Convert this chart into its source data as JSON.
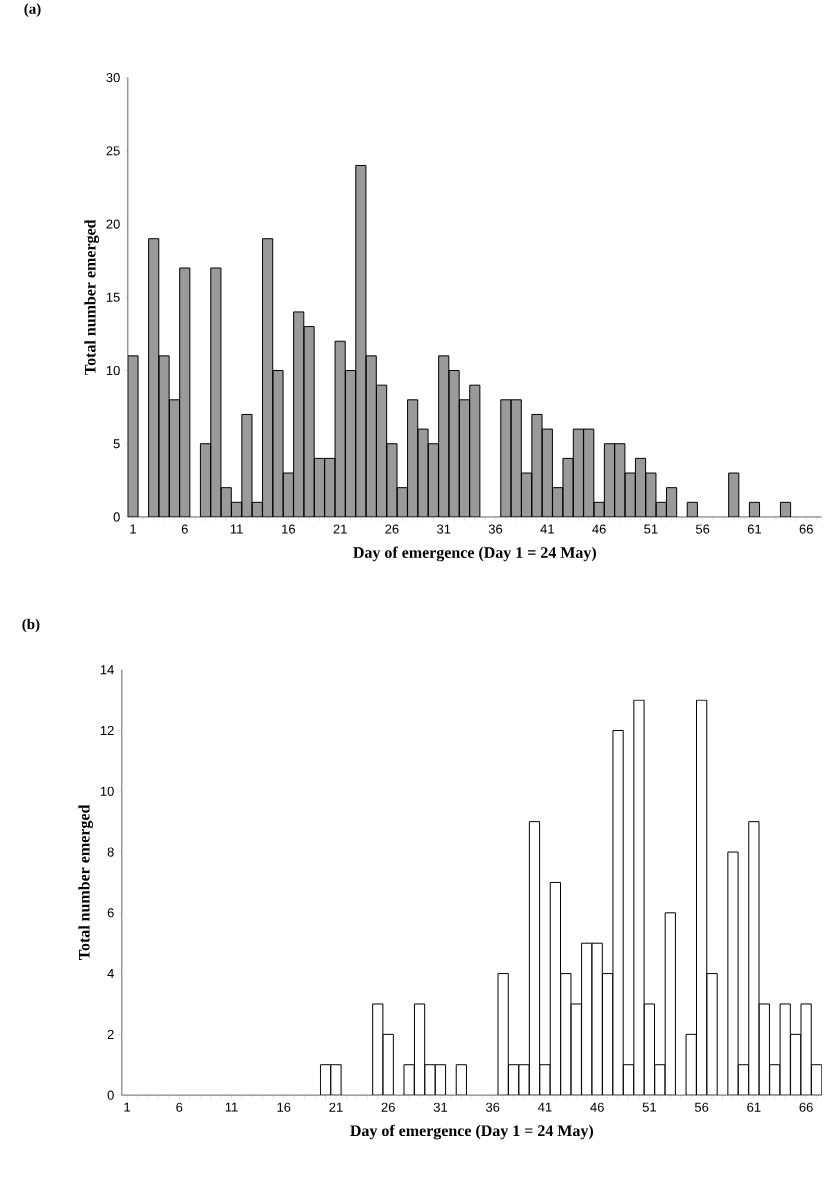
{
  "chart_data": [
    {
      "type": "bar",
      "title": "(a)",
      "xlabel": "Day of emergence (Day 1 = 24 May)",
      "ylabel": "Total number emerged",
      "color": "#9a9a9a",
      "categories": [
        "1",
        null,
        null,
        null,
        null,
        "6",
        null,
        null,
        null,
        null,
        "11",
        null,
        null,
        null,
        null,
        "16",
        null,
        null,
        null,
        null,
        "21",
        null,
        null,
        null,
        null,
        "26",
        null,
        null,
        null,
        null,
        "31",
        null,
        null,
        null,
        null,
        "36",
        null,
        null,
        null,
        null,
        "41",
        null,
        null,
        null,
        null,
        "46",
        null,
        null,
        null,
        null,
        "51",
        null,
        null,
        null,
        null,
        "56",
        null,
        null,
        null,
        null,
        "61",
        null,
        null,
        null,
        null,
        "66",
        null
      ],
      "values": [
        11,
        0,
        19,
        11,
        8,
        17,
        0,
        5,
        17,
        2,
        1,
        7,
        1,
        19,
        10,
        3,
        14,
        13,
        4,
        4,
        12,
        10,
        24,
        11,
        9,
        5,
        2,
        8,
        6,
        5,
        11,
        10,
        8,
        9,
        0,
        0,
        8,
        8,
        3,
        7,
        6,
        2,
        4,
        6,
        6,
        1,
        5,
        5,
        3,
        4,
        3,
        1,
        2,
        0,
        1,
        0,
        0,
        0,
        3,
        0,
        1,
        0,
        0,
        1,
        0,
        0,
        0
      ],
      "ylim": [
        0,
        30
      ],
      "yticks": [
        0,
        5,
        10,
        15,
        20,
        25,
        30
      ]
    },
    {
      "type": "bar",
      "title": "(b)",
      "xlabel": "Day of emergence (Day 1 = 24 May)",
      "ylabel": "Total number emerged",
      "color": "#ffffff",
      "categories": [
        "1",
        null,
        null,
        null,
        null,
        "6",
        null,
        null,
        null,
        null,
        "11",
        null,
        null,
        null,
        null,
        "16",
        null,
        null,
        null,
        null,
        "21",
        null,
        null,
        null,
        null,
        "26",
        null,
        null,
        null,
        null,
        "31",
        null,
        null,
        null,
        null,
        "36",
        null,
        null,
        null,
        null,
        "41",
        null,
        null,
        null,
        null,
        "46",
        null,
        null,
        null,
        null,
        "51",
        null,
        null,
        null,
        null,
        "56",
        null,
        null,
        null,
        null,
        "61",
        null,
        null,
        null,
        null,
        "66",
        null
      ],
      "values": [
        0,
        0,
        0,
        0,
        0,
        0,
        0,
        0,
        0,
        0,
        0,
        0,
        0,
        0,
        0,
        0,
        0,
        0,
        0,
        1,
        1,
        0,
        0,
        0,
        3,
        2,
        0,
        1,
        3,
        1,
        1,
        0,
        1,
        0,
        0,
        0,
        4,
        1,
        1,
        9,
        1,
        7,
        4,
        3,
        5,
        5,
        4,
        12,
        1,
        13,
        3,
        1,
        6,
        0,
        2,
        13,
        4,
        0,
        8,
        1,
        9,
        3,
        1,
        3,
        2,
        3,
        1
      ],
      "ylim": [
        0,
        14
      ],
      "yticks": [
        0,
        2,
        4,
        6,
        8,
        10,
        12,
        14
      ]
    }
  ]
}
